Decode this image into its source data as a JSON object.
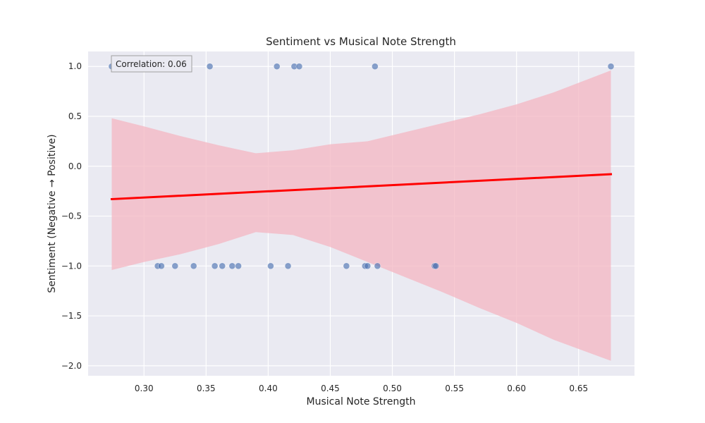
{
  "chart_data": {
    "type": "scatter",
    "title": "Sentiment vs Musical Note Strength",
    "xlabel": "Musical Note Strength",
    "ylabel": "Sentiment (Negative → Positive)",
    "xlim": [
      0.255,
      0.695
    ],
    "ylim": [
      -2.1,
      1.15
    ],
    "grid": true,
    "xticks": [
      0.3,
      0.35,
      0.4,
      0.45,
      0.5,
      0.55,
      0.6,
      0.65
    ],
    "xtick_labels": [
      "0.30",
      "0.35",
      "0.40",
      "0.45",
      "0.50",
      "0.55",
      "0.60",
      "0.65"
    ],
    "yticks": [
      1.0,
      0.5,
      0.0,
      -0.5,
      -1.0,
      -1.5,
      -2.0
    ],
    "ytick_labels": [
      "1.0",
      "0.5",
      "0.0",
      "−0.5",
      "−1.0",
      "−1.5",
      "−2.0"
    ],
    "annotation": "Correlation: 0.06",
    "colors": {
      "background": "#eaeaf2",
      "grid": "#ffffff",
      "points": "#4c72b0",
      "regression_line": "#ff0000",
      "confidence_band": "#f4b6c2"
    },
    "points": [
      {
        "x": 0.274,
        "y": 1.0
      },
      {
        "x": 0.353,
        "y": 1.0
      },
      {
        "x": 0.407,
        "y": 1.0
      },
      {
        "x": 0.421,
        "y": 1.0
      },
      {
        "x": 0.425,
        "y": 1.0
      },
      {
        "x": 0.486,
        "y": 1.0
      },
      {
        "x": 0.676,
        "y": 1.0
      },
      {
        "x": 0.311,
        "y": -1.0
      },
      {
        "x": 0.314,
        "y": -1.0
      },
      {
        "x": 0.325,
        "y": -1.0
      },
      {
        "x": 0.34,
        "y": -1.0
      },
      {
        "x": 0.357,
        "y": -1.0
      },
      {
        "x": 0.363,
        "y": -1.0
      },
      {
        "x": 0.371,
        "y": -1.0
      },
      {
        "x": 0.376,
        "y": -1.0
      },
      {
        "x": 0.402,
        "y": -1.0
      },
      {
        "x": 0.416,
        "y": -1.0
      },
      {
        "x": 0.463,
        "y": -1.0
      },
      {
        "x": 0.478,
        "y": -1.0
      },
      {
        "x": 0.48,
        "y": -1.0
      },
      {
        "x": 0.488,
        "y": -1.0
      },
      {
        "x": 0.534,
        "y": -1.0
      },
      {
        "x": 0.535,
        "y": -1.0
      }
    ],
    "regression_line": {
      "x": [
        0.274,
        0.676
      ],
      "y": [
        -0.33,
        -0.08
      ]
    },
    "confidence_band": {
      "x": [
        0.274,
        0.3,
        0.33,
        0.36,
        0.39,
        0.42,
        0.45,
        0.48,
        0.51,
        0.54,
        0.57,
        0.6,
        0.63,
        0.676
      ],
      "upper": [
        0.48,
        0.4,
        0.3,
        0.21,
        0.13,
        0.16,
        0.22,
        0.25,
        0.34,
        0.43,
        0.52,
        0.62,
        0.74,
        0.96
      ],
      "lower": [
        -1.04,
        -0.96,
        -0.88,
        -0.78,
        -0.66,
        -0.69,
        -0.81,
        -0.96,
        -1.11,
        -1.26,
        -1.42,
        -1.57,
        -1.74,
        -1.95
      ]
    }
  }
}
